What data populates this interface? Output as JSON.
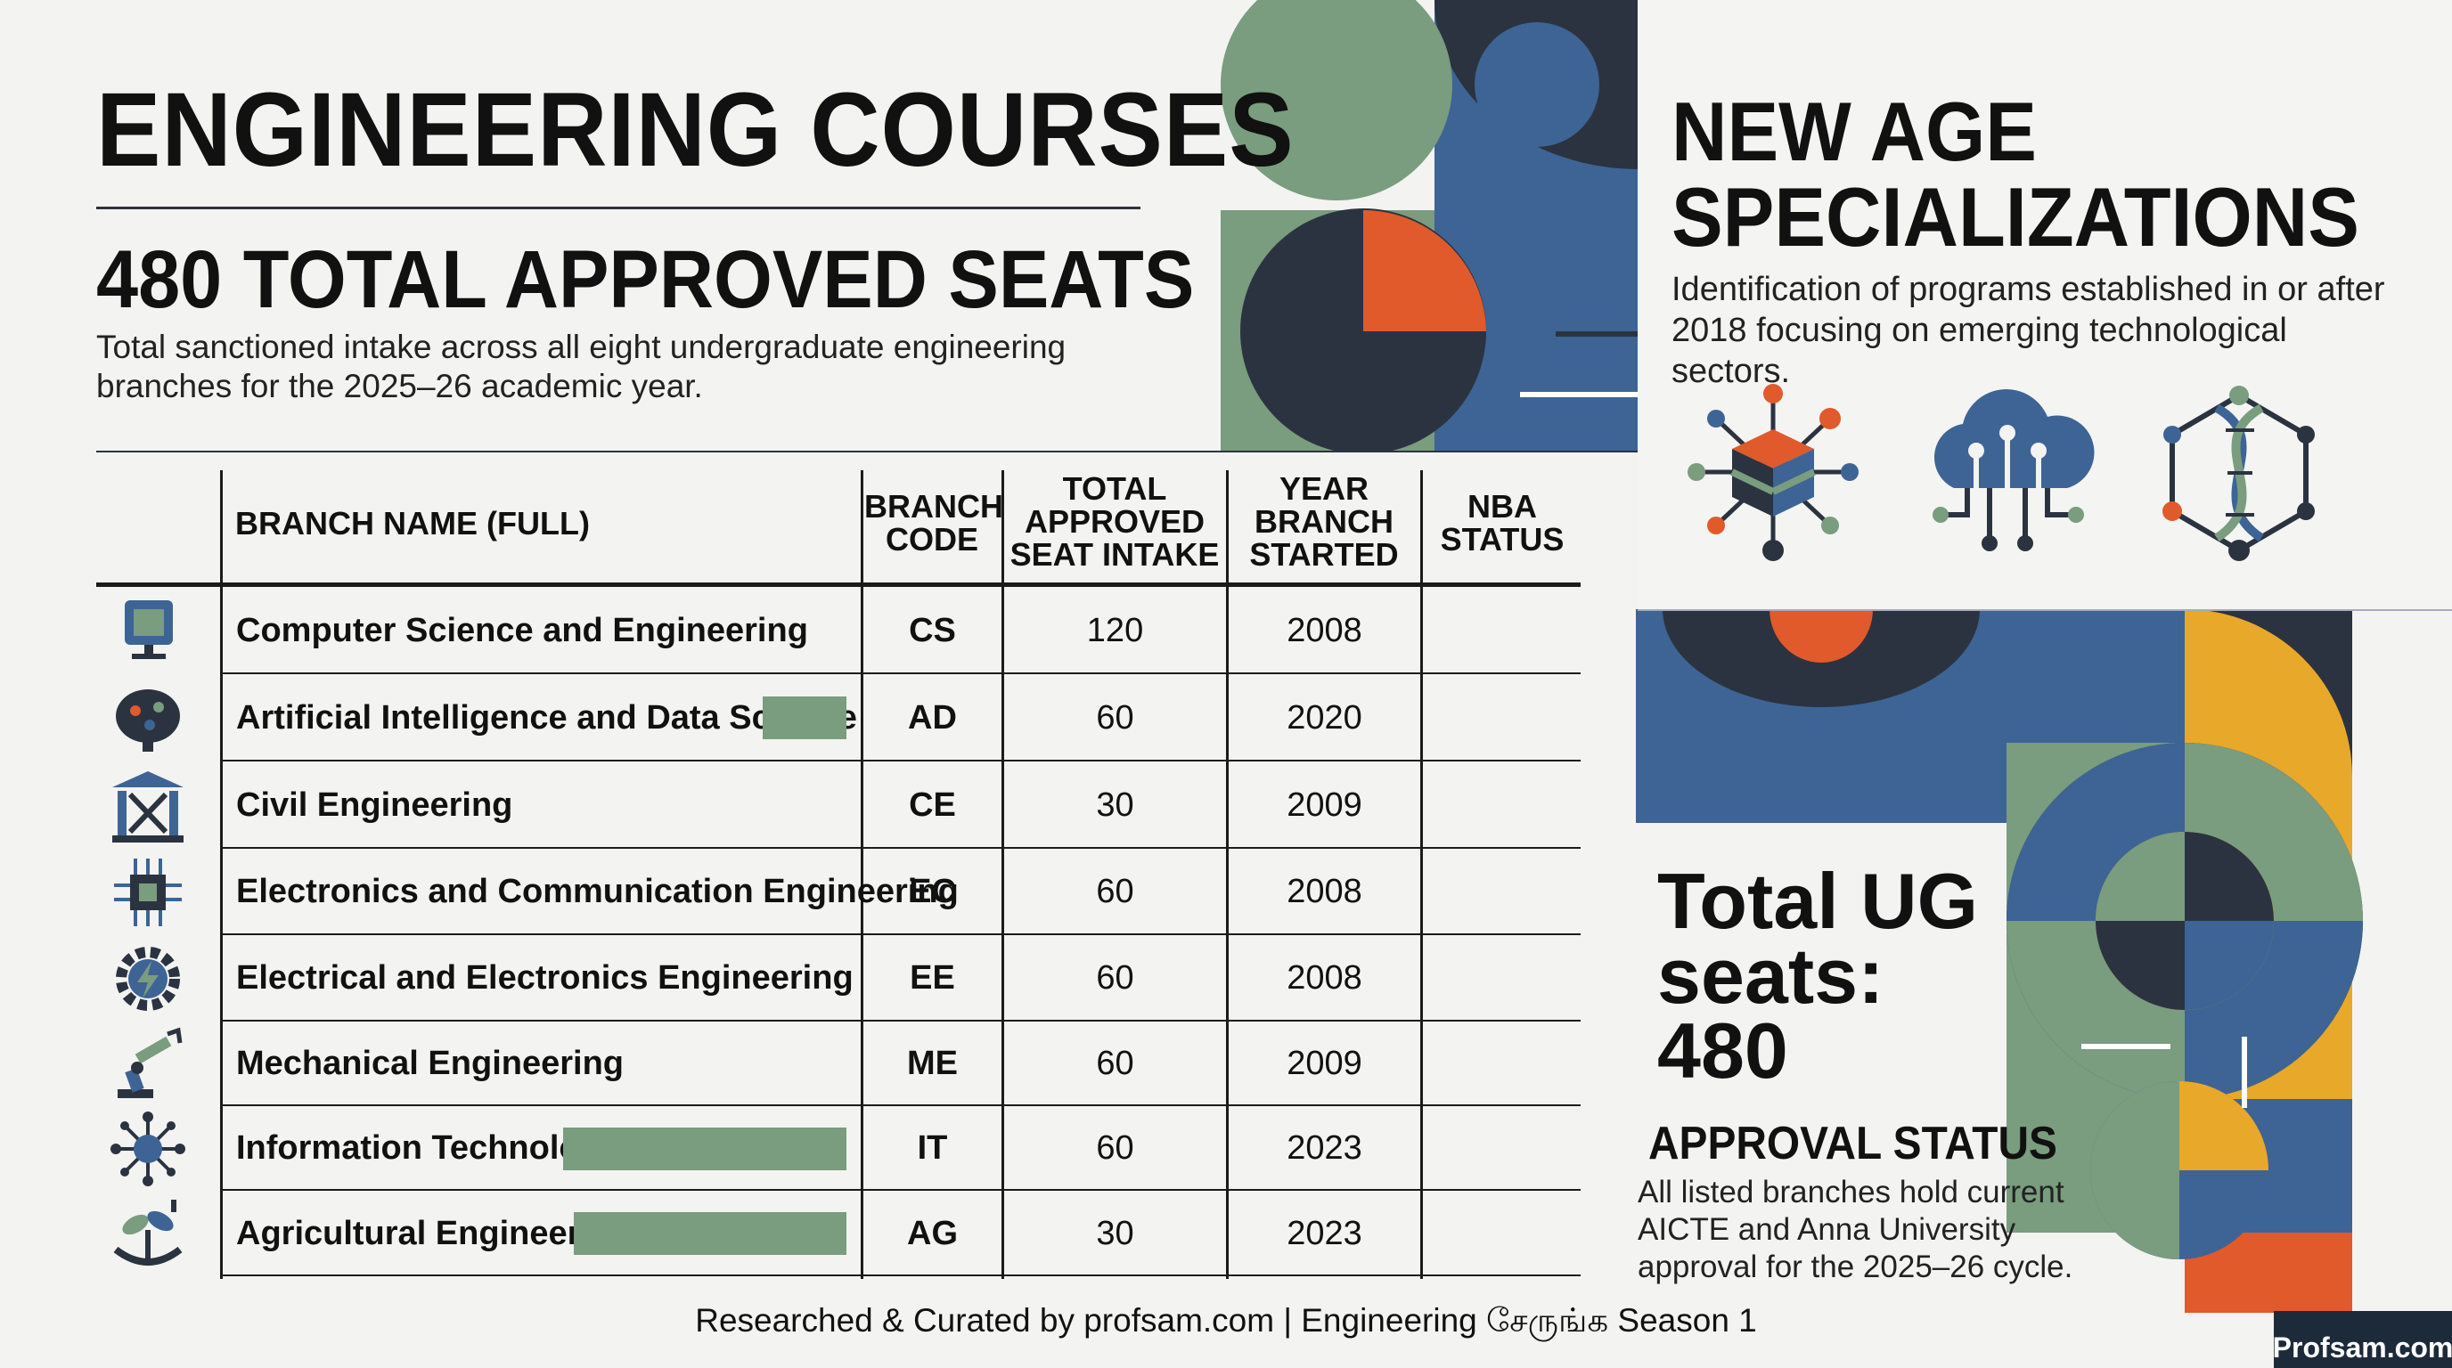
{
  "header": {
    "title": "ENGINEERING COURSES",
    "seats_title": "480 TOTAL APPROVED SEATS",
    "seats_description": "Total sanctioned intake across all eight undergraduate engineering branches for the 2025–26 academic year."
  },
  "table": {
    "headers": {
      "branch_name": "BRANCH NAME (FULL)",
      "branch_code": [
        "BRANCH",
        "CODE"
      ],
      "seat_intake": [
        "TOTAL",
        "APPROVED",
        "SEAT INTAKE"
      ],
      "year_started": [
        "YEAR",
        "BRANCH",
        "STARTED"
      ],
      "nba_status": [
        "NBA",
        "STATUS"
      ]
    },
    "rows": [
      {
        "icon": "computer-icon",
        "name": "Computer Science and Engineering",
        "code": "CS",
        "intake": "120",
        "year": "2008",
        "nba": "",
        "new_age": false
      },
      {
        "icon": "brain-circuit-icon",
        "name": "Artificial Intelligence and Data Science",
        "code": "AD",
        "intake": "60",
        "year": "2020",
        "nba": "",
        "new_age": true
      },
      {
        "icon": "building-icon",
        "name": "Civil Engineering",
        "code": "CE",
        "intake": "30",
        "year": "2009",
        "nba": "",
        "new_age": false
      },
      {
        "icon": "chip-icon",
        "name": "Electronics and Communication Engineering",
        "code": "EC",
        "intake": "60",
        "year": "2008",
        "nba": "",
        "new_age": false
      },
      {
        "icon": "gear-bolt-icon",
        "name": "Electrical and Electronics Engineering",
        "code": "EE",
        "intake": "60",
        "year": "2008",
        "nba": "",
        "new_age": false
      },
      {
        "icon": "robot-arm-icon",
        "name": "Mechanical Engineering",
        "code": "ME",
        "intake": "60",
        "year": "2009",
        "nba": "",
        "new_age": false
      },
      {
        "icon": "network-icon",
        "name": "Information Technology",
        "code": "IT",
        "intake": "60",
        "year": "2023",
        "nba": "",
        "new_age": true
      },
      {
        "icon": "plant-icon",
        "name": "Agricultural Engineering",
        "code": "AG",
        "intake": "30",
        "year": "2023",
        "nba": "",
        "new_age": true
      }
    ]
  },
  "new_age": {
    "title_line1": "NEW AGE",
    "title_line2": "SPECIALIZATIONS",
    "description": "Identification of programs established in or after 2018 focusing on emerging technological sectors.",
    "icons": [
      "data-cube-icon",
      "cloud-circuit-icon",
      "dna-network-icon"
    ]
  },
  "summary": {
    "ug_line1": "Total UG",
    "ug_line2": "seats:",
    "ug_line3": "480",
    "approval_title": "APPROVAL STATUS",
    "approval_desc": "All listed branches hold current AICTE and Anna University approval for the 2025–26 cycle."
  },
  "footer": {
    "text": "Researched & Curated by profsam.com | Engineering சேருங்க Season 1",
    "brand": "Profsam.com"
  },
  "colors": {
    "green": "#7a9c7f",
    "navy": "#2b3340",
    "blue": "#3d6494",
    "orange": "#e05a2b",
    "yellow": "#e8a82a"
  }
}
